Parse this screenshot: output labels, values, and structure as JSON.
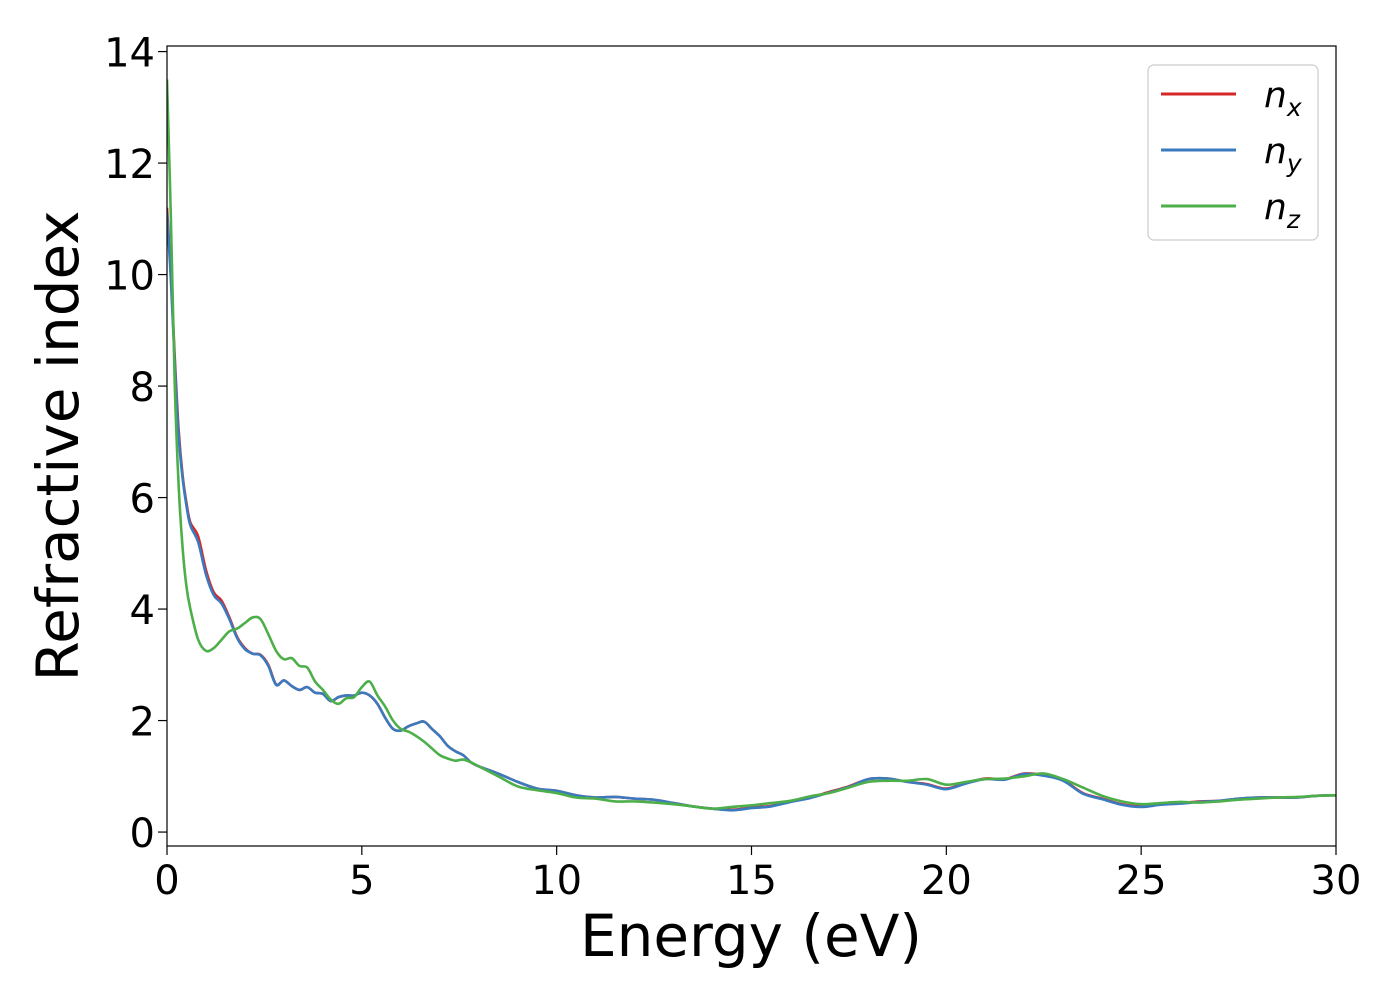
{
  "chart_data": {
    "type": "line",
    "title": "",
    "xlabel": "Energy (eV)",
    "ylabel": "Refractive index",
    "xlim": [
      0,
      30
    ],
    "ylim": [
      -0.25,
      14.1
    ],
    "xticks": [
      0,
      5,
      10,
      15,
      20,
      25,
      30
    ],
    "yticks": [
      0,
      2,
      4,
      6,
      8,
      10,
      12,
      14
    ],
    "grid": false,
    "legend_position": "top-right",
    "series": [
      {
        "name": "n_x",
        "label_base": "n",
        "label_sub": "x",
        "color": "#d62728",
        "x": [
          0,
          0.1,
          0.2,
          0.3,
          0.4,
          0.5,
          0.6,
          0.8,
          1.0,
          1.2,
          1.4,
          1.6,
          1.8,
          2.0,
          2.2,
          2.4,
          2.6,
          2.8,
          3.0,
          3.2,
          3.4,
          3.6,
          3.8,
          4.0,
          4.2,
          4.4,
          4.6,
          4.8,
          5.0,
          5.2,
          5.4,
          5.6,
          5.8,
          6.0,
          6.2,
          6.4,
          6.6,
          6.8,
          7.0,
          7.2,
          7.4,
          7.6,
          7.8,
          8.0,
          8.5,
          9.0,
          9.5,
          10.0,
          10.5,
          11.0,
          11.5,
          12.0,
          12.5,
          13.0,
          13.5,
          14.0,
          14.5,
          15.0,
          15.5,
          16.0,
          16.5,
          17.0,
          17.5,
          18.0,
          18.5,
          19.0,
          19.5,
          20.0,
          20.5,
          21.0,
          21.5,
          22.0,
          22.5,
          23.0,
          23.5,
          24.0,
          24.5,
          25.0,
          25.5,
          26.0,
          26.5,
          27.0,
          27.5,
          28.0,
          28.5,
          29.0,
          29.5,
          30.0
        ],
        "y": [
          11.2,
          10.0,
          8.5,
          7.2,
          6.4,
          5.9,
          5.55,
          5.3,
          4.7,
          4.3,
          4.15,
          3.85,
          3.5,
          3.3,
          3.2,
          3.18,
          3.0,
          2.65,
          2.72,
          2.62,
          2.55,
          2.6,
          2.5,
          2.48,
          2.35,
          2.42,
          2.45,
          2.45,
          2.5,
          2.45,
          2.3,
          2.05,
          1.85,
          1.82,
          1.9,
          1.95,
          1.98,
          1.85,
          1.72,
          1.55,
          1.45,
          1.38,
          1.25,
          1.18,
          1.05,
          0.9,
          0.78,
          0.74,
          0.66,
          0.62,
          0.63,
          0.6,
          0.58,
          0.52,
          0.46,
          0.42,
          0.4,
          0.44,
          0.47,
          0.55,
          0.62,
          0.72,
          0.82,
          0.95,
          0.96,
          0.9,
          0.86,
          0.78,
          0.88,
          0.96,
          0.95,
          1.05,
          1.02,
          0.93,
          0.7,
          0.6,
          0.5,
          0.46,
          0.5,
          0.52,
          0.55,
          0.56,
          0.6,
          0.62,
          0.62,
          0.62,
          0.65,
          0.66
        ]
      },
      {
        "name": "n_y",
        "label_base": "n",
        "label_sub": "y",
        "color": "#3a7bbf",
        "x": [
          0,
          0.1,
          0.2,
          0.3,
          0.4,
          0.5,
          0.6,
          0.8,
          1.0,
          1.2,
          1.4,
          1.6,
          1.8,
          2.0,
          2.2,
          2.4,
          2.6,
          2.8,
          3.0,
          3.2,
          3.4,
          3.6,
          3.8,
          4.0,
          4.2,
          4.4,
          4.6,
          4.8,
          5.0,
          5.2,
          5.4,
          5.6,
          5.8,
          6.0,
          6.2,
          6.4,
          6.6,
          6.8,
          7.0,
          7.2,
          7.4,
          7.6,
          7.8,
          8.0,
          8.5,
          9.0,
          9.5,
          10.0,
          10.5,
          11.0,
          11.5,
          12.0,
          12.5,
          13.0,
          13.5,
          14.0,
          14.5,
          15.0,
          15.5,
          16.0,
          16.5,
          17.0,
          17.5,
          18.0,
          18.5,
          19.0,
          19.5,
          20.0,
          20.5,
          21.0,
          21.5,
          22.0,
          22.5,
          23.0,
          23.5,
          24.0,
          24.5,
          25.0,
          25.5,
          26.0,
          26.5,
          27.0,
          27.5,
          28.0,
          28.5,
          29.0,
          29.5,
          30.0
        ],
        "y": [
          11.1,
          9.9,
          8.4,
          7.1,
          6.35,
          5.85,
          5.5,
          5.2,
          4.62,
          4.25,
          4.1,
          3.82,
          3.48,
          3.28,
          3.2,
          3.17,
          2.98,
          2.64,
          2.72,
          2.62,
          2.55,
          2.6,
          2.5,
          2.48,
          2.35,
          2.42,
          2.45,
          2.45,
          2.5,
          2.45,
          2.3,
          2.05,
          1.85,
          1.82,
          1.9,
          1.95,
          1.98,
          1.85,
          1.72,
          1.55,
          1.45,
          1.38,
          1.25,
          1.18,
          1.05,
          0.9,
          0.78,
          0.74,
          0.66,
          0.62,
          0.63,
          0.6,
          0.58,
          0.52,
          0.46,
          0.42,
          0.39,
          0.43,
          0.46,
          0.54,
          0.61,
          0.71,
          0.81,
          0.95,
          0.96,
          0.9,
          0.85,
          0.77,
          0.87,
          0.95,
          0.94,
          1.04,
          1.01,
          0.92,
          0.69,
          0.59,
          0.49,
          0.45,
          0.49,
          0.51,
          0.54,
          0.56,
          0.6,
          0.62,
          0.62,
          0.62,
          0.65,
          0.66
        ]
      },
      {
        "name": "n_z",
        "label_base": "n",
        "label_sub": "z",
        "color": "#4daf4a",
        "x": [
          0,
          0.1,
          0.2,
          0.3,
          0.4,
          0.5,
          0.6,
          0.8,
          1.0,
          1.2,
          1.4,
          1.6,
          1.8,
          2.0,
          2.2,
          2.4,
          2.6,
          2.8,
          3.0,
          3.2,
          3.4,
          3.6,
          3.8,
          4.0,
          4.2,
          4.4,
          4.6,
          4.8,
          5.0,
          5.2,
          5.4,
          5.6,
          5.8,
          6.0,
          6.2,
          6.4,
          6.6,
          6.8,
          7.0,
          7.2,
          7.4,
          7.6,
          7.8,
          8.0,
          8.5,
          9.0,
          9.5,
          10.0,
          10.5,
          11.0,
          11.5,
          12.0,
          12.5,
          13.0,
          13.5,
          14.0,
          14.5,
          15.0,
          15.5,
          16.0,
          16.5,
          17.0,
          17.5,
          18.0,
          18.5,
          19.0,
          19.5,
          20.0,
          20.5,
          21.0,
          21.5,
          22.0,
          22.5,
          23.0,
          23.5,
          24.0,
          24.5,
          25.0,
          25.5,
          26.0,
          26.5,
          27.0,
          27.5,
          28.0,
          28.5,
          29.0,
          29.5,
          30.0
        ],
        "y": [
          13.5,
          11.0,
          8.0,
          6.2,
          5.1,
          4.4,
          4.0,
          3.45,
          3.25,
          3.3,
          3.45,
          3.6,
          3.65,
          3.75,
          3.85,
          3.82,
          3.55,
          3.25,
          3.1,
          3.12,
          2.98,
          2.95,
          2.7,
          2.55,
          2.38,
          2.3,
          2.4,
          2.42,
          2.6,
          2.7,
          2.45,
          2.25,
          2.0,
          1.85,
          1.8,
          1.72,
          1.62,
          1.5,
          1.38,
          1.32,
          1.28,
          1.3,
          1.25,
          1.18,
          1.0,
          0.82,
          0.75,
          0.7,
          0.62,
          0.6,
          0.55,
          0.55,
          0.53,
          0.5,
          0.46,
          0.42,
          0.45,
          0.48,
          0.52,
          0.56,
          0.64,
          0.7,
          0.8,
          0.9,
          0.92,
          0.92,
          0.95,
          0.85,
          0.9,
          0.95,
          0.96,
          1.0,
          1.05,
          0.95,
          0.8,
          0.65,
          0.55,
          0.5,
          0.52,
          0.54,
          0.53,
          0.55,
          0.58,
          0.6,
          0.62,
          0.63,
          0.65,
          0.66
        ]
      }
    ]
  }
}
